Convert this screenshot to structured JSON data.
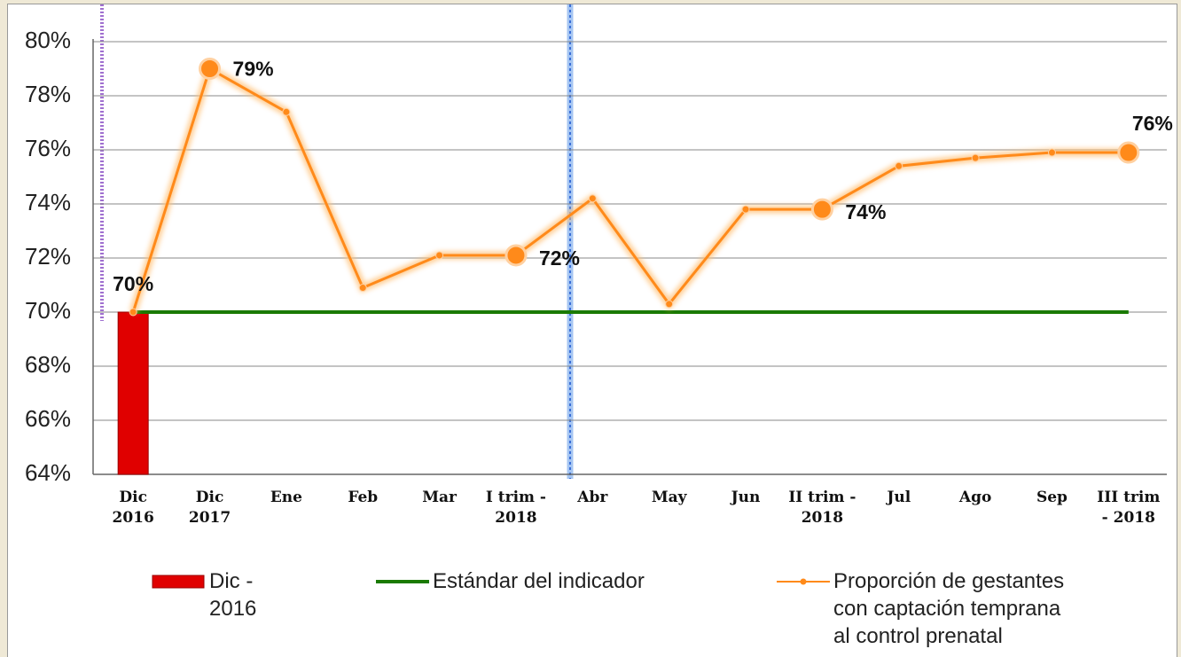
{
  "chart_data": {
    "type": "combo",
    "categories": [
      "Dic\n2016",
      "Dic\n2017",
      "Ene",
      "Feb",
      "Mar",
      "I trim -\n2018",
      "Abr",
      "May",
      "Jun",
      "II trim -\n2018",
      "Jul",
      "Ago",
      "Sep",
      "III trim\n- 2018"
    ],
    "ylim": [
      64,
      80
    ],
    "yticks": [
      {
        "value": 64,
        "label": "64%"
      },
      {
        "value": 66,
        "label": "66%"
      },
      {
        "value": 68,
        "label": "68%"
      },
      {
        "value": 70,
        "label": "70%"
      },
      {
        "value": 72,
        "label": "72%"
      },
      {
        "value": 74,
        "label": "74%"
      },
      {
        "value": 76,
        "label": "76%"
      },
      {
        "value": 78,
        "label": "78%"
      },
      {
        "value": 80,
        "label": "80%"
      }
    ],
    "grid": true,
    "series": [
      {
        "name": "Dic -\n2016",
        "type": "bar",
        "color": "#e00000",
        "values": [
          70,
          null,
          null,
          null,
          null,
          null,
          null,
          null,
          null,
          null,
          null,
          null,
          null,
          null
        ]
      },
      {
        "name": "Estándar del indicador",
        "type": "line",
        "color": "#1a7a00",
        "values": [
          70,
          70,
          70,
          70,
          70,
          70,
          70,
          70,
          70,
          70,
          70,
          70,
          70,
          70
        ]
      },
      {
        "name": "Proporción de gestantes\ncon captación temprana\n al control prenatal",
        "type": "line",
        "color": "#ff8a1a",
        "values": [
          70,
          79,
          77.4,
          70.9,
          72.1,
          72.1,
          74.2,
          70.3,
          73.8,
          73.8,
          75.4,
          75.7,
          75.9,
          75.9
        ],
        "value_labels": [
          "70%",
          "79%",
          null,
          null,
          null,
          "72%",
          null,
          null,
          null,
          "74%",
          null,
          null,
          null,
          "76%"
        ]
      }
    ]
  }
}
